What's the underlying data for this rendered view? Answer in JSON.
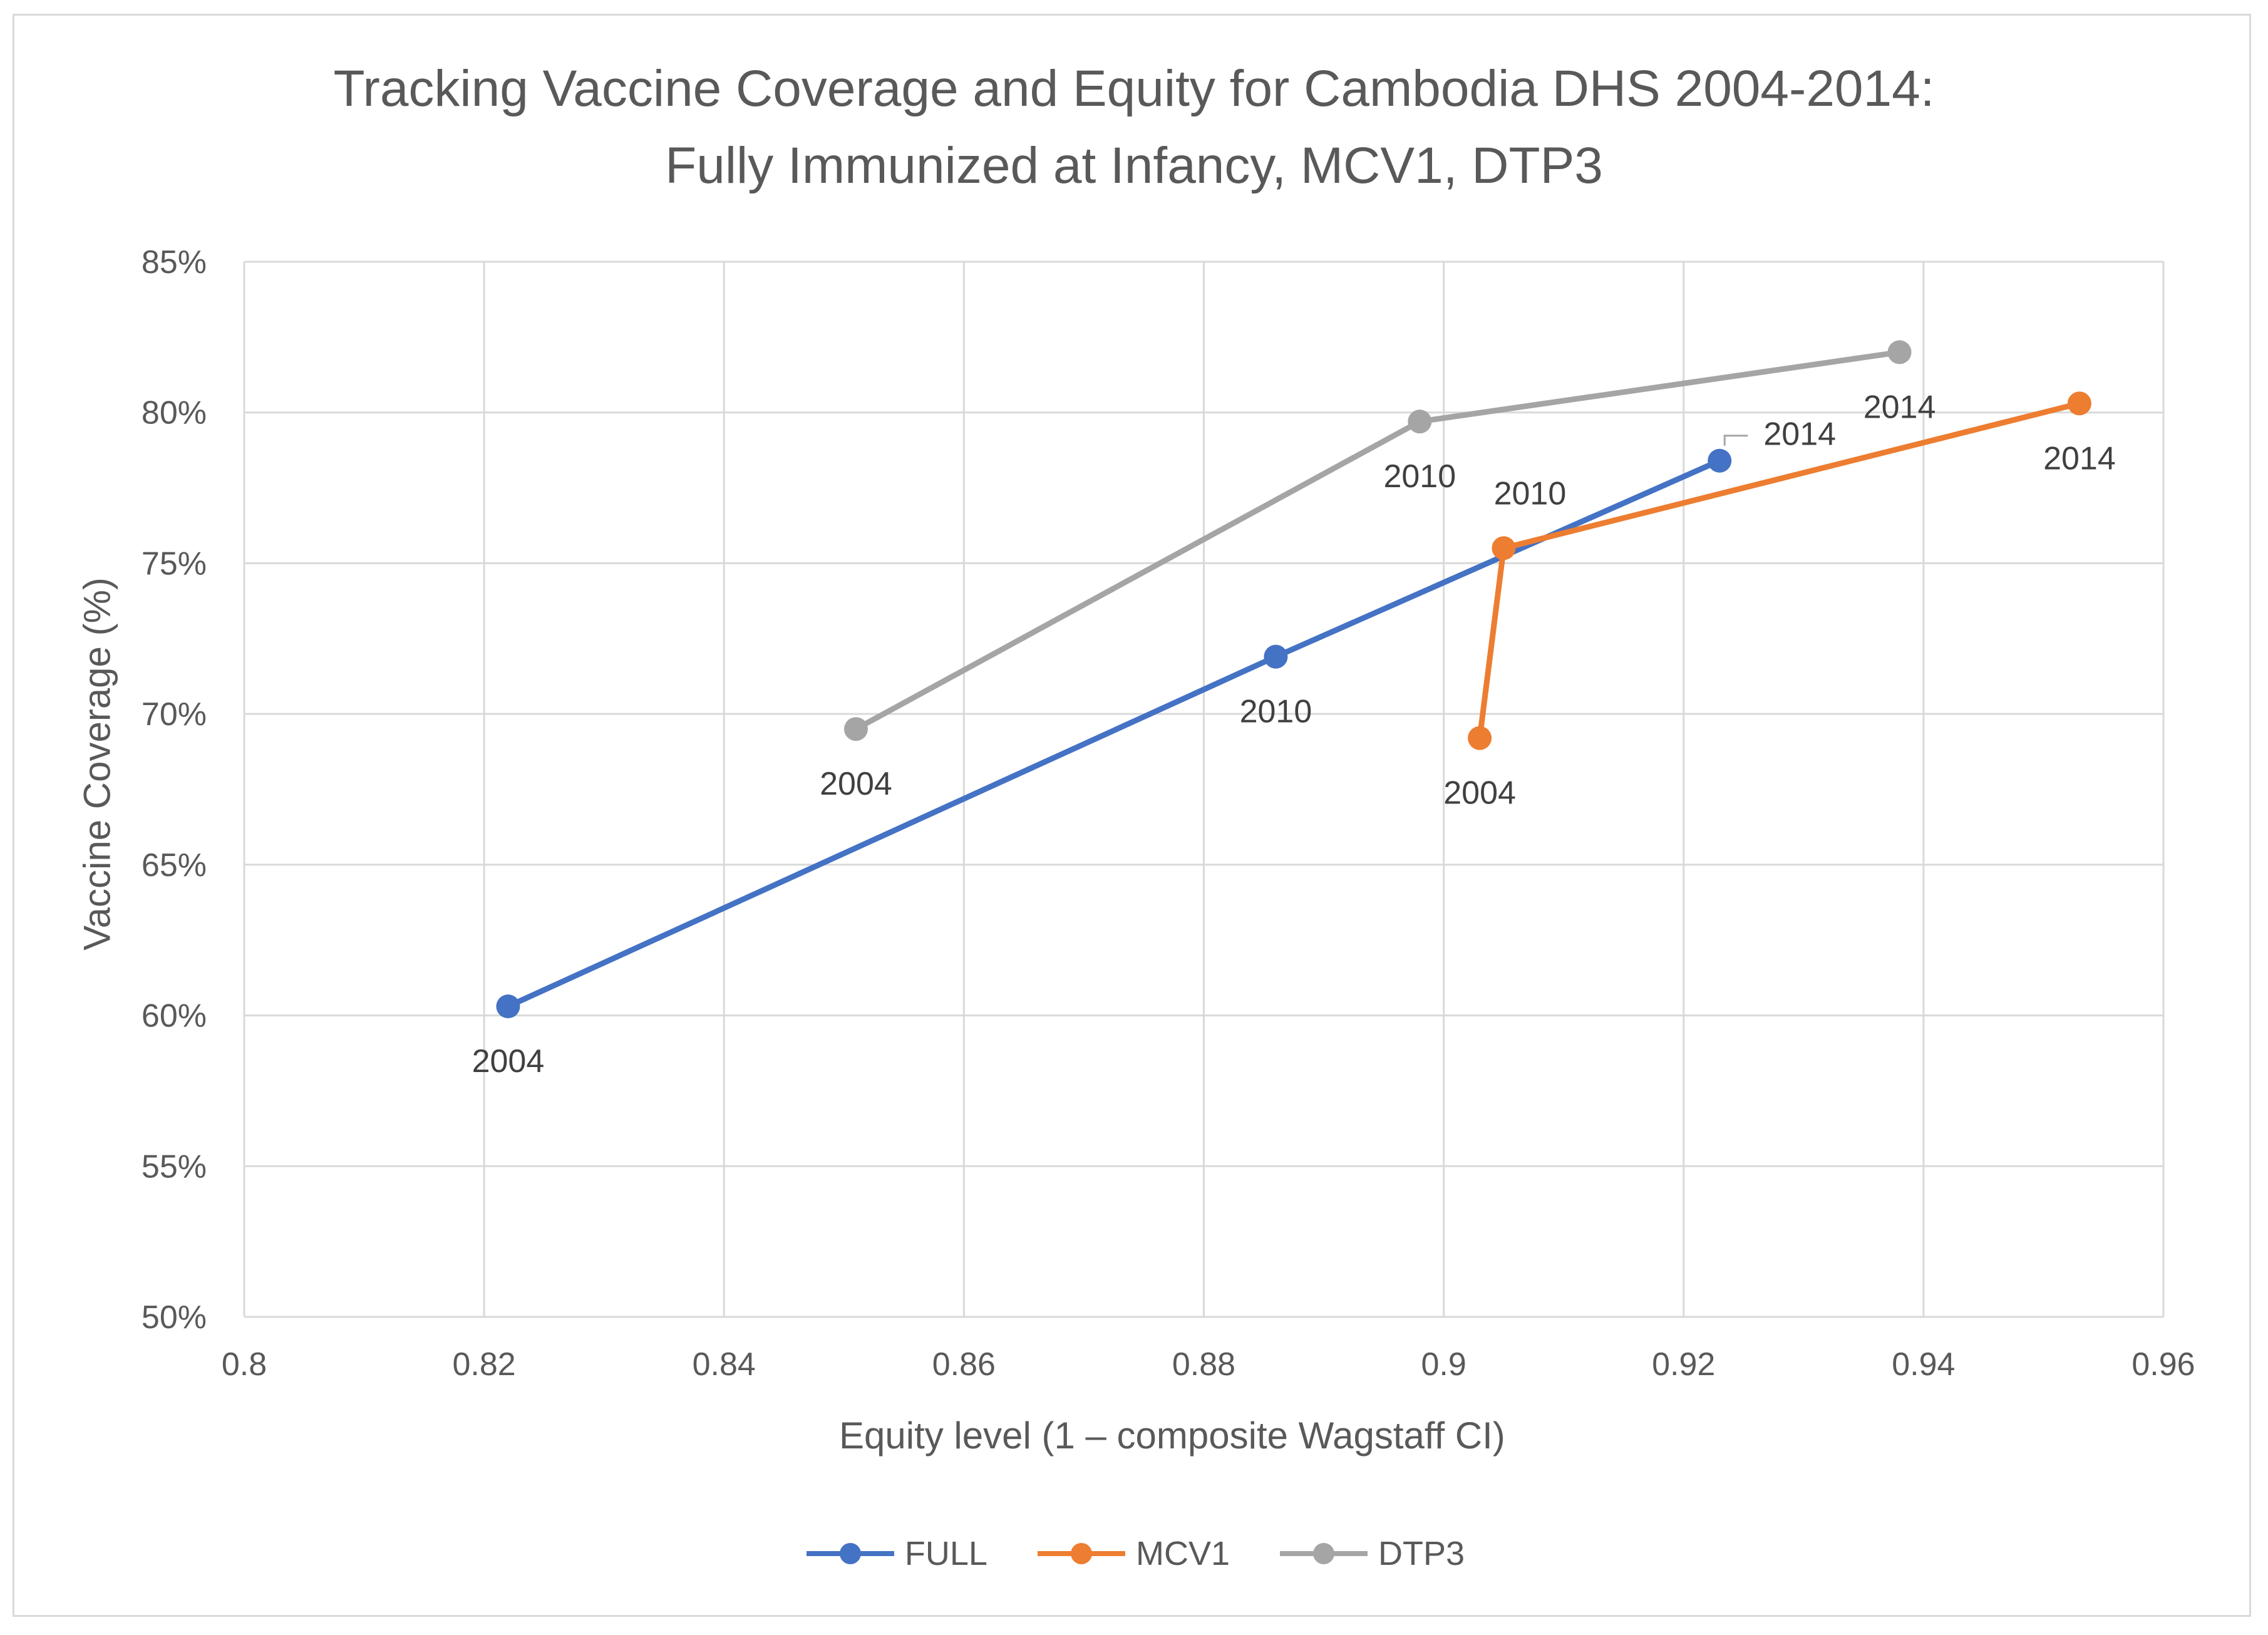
{
  "chart_data": {
    "type": "line",
    "title_lines": [
      "Tracking Vaccine Coverage and Equity for Cambodia DHS 2004-2014:",
      "Fully Immunized at Infancy, MCV1, DTP3"
    ],
    "xlabel": "Equity level (1 – composite Wagstaff CI)",
    "ylabel": "Vaccine Coverage (%)",
    "xlim": [
      0.8,
      0.96
    ],
    "ylim": [
      50,
      85
    ],
    "x_ticks": [
      0.8,
      0.82,
      0.84,
      0.86,
      0.88,
      0.9,
      0.92,
      0.94,
      0.96
    ],
    "x_tick_labels": [
      "0.8",
      "0.82",
      "0.84",
      "0.86",
      "0.88",
      "0.9",
      "0.92",
      "0.94",
      "0.96"
    ],
    "y_ticks": [
      50,
      55,
      60,
      65,
      70,
      75,
      80,
      85
    ],
    "y_tick_labels": [
      "50%",
      "55%",
      "60%",
      "65%",
      "70%",
      "75%",
      "80%",
      "85%"
    ],
    "grid": true,
    "legend_position": "bottom",
    "series": [
      {
        "name": "FULL",
        "color": "#4472c4",
        "points": [
          {
            "x": 0.822,
            "y": 60.3,
            "label": "2004"
          },
          {
            "x": 0.886,
            "y": 71.9,
            "label": "2010"
          },
          {
            "x": 0.923,
            "y": 78.4,
            "label": "2014"
          }
        ]
      },
      {
        "name": "MCV1",
        "color": "#ed7d31",
        "points": [
          {
            "x": 0.903,
            "y": 69.2,
            "label": "2004"
          },
          {
            "x": 0.905,
            "y": 75.5,
            "label": "2010"
          },
          {
            "x": 0.953,
            "y": 80.3,
            "label": "2014"
          }
        ]
      },
      {
        "name": "DTP3",
        "color": "#a5a5a5",
        "points": [
          {
            "x": 0.851,
            "y": 69.5,
            "label": "2004"
          },
          {
            "x": 0.898,
            "y": 79.7,
            "label": "2010"
          },
          {
            "x": 0.938,
            "y": 82.0,
            "label": "2014"
          }
        ]
      }
    ]
  }
}
